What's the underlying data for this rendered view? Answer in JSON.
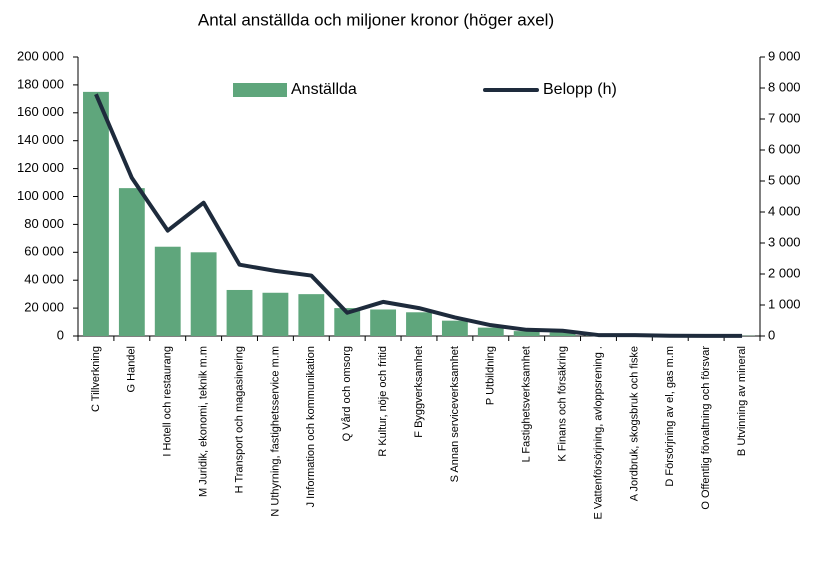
{
  "chart_data": {
    "type": "bar",
    "title": "Antal anställda och miljoner kronor (höger axel)",
    "categories": [
      "C Tillverkning",
      "G Handel",
      "I Hotell och restaurang",
      "M Juridik, ekonomi, teknik m.m",
      "H Transport och magasinering",
      "N Uthyrning,  fastighetsservice m.m",
      "J Information och kommunikation",
      "Q Vård och omsorg",
      "R Kultur, nöje och fritid",
      "F Byggverksamhet",
      "S Annan serviceverksamhet",
      "P Utbildning",
      "L Fastighetsverksamhet",
      "K Finans och försäkring",
      "E Vattenförsörjning, avloppsrening .",
      "A Jordbruk, skogsbruk och fiske",
      "D Försörjning av el, gas m.m",
      "O Offentlig förvaltning och försvar",
      "B Utvinning av mineral"
    ],
    "series": [
      {
        "name": "Anställda",
        "type": "bar",
        "color": "#5fa67c",
        "values": [
          175000,
          106000,
          64000,
          60000,
          33000,
          31000,
          30000,
          20000,
          19000,
          17000,
          11000,
          6000,
          3500,
          2500,
          1500,
          1200,
          600,
          300,
          200
        ]
      },
      {
        "name": "Belopp (h)",
        "type": "line",
        "axis": "y2",
        "color": "#1e2b3c",
        "values": [
          7800,
          5100,
          3400,
          4300,
          2300,
          2100,
          1950,
          750,
          1100,
          900,
          600,
          350,
          200,
          170,
          30,
          30,
          10,
          5,
          5
        ]
      }
    ],
    "ylim": [
      0,
      200000
    ],
    "yticks": [
      0,
      {
        "value": 20000,
        "label": "20 000"
      },
      {
        "value": 40000,
        "label": "40 000"
      },
      {
        "value": 60000,
        "label": "60 000"
      },
      {
        "value": 80000,
        "label": "80 000"
      },
      {
        "value": 100000,
        "label": "100 000"
      },
      {
        "value": 120000,
        "label": "120 000"
      },
      {
        "value": 140000,
        "label": "140 000"
      },
      {
        "value": 160000,
        "label": "160 000"
      },
      {
        "value": 180000,
        "label": "180 000"
      },
      {
        "value": 200000,
        "label": "200 000"
      }
    ],
    "y2lim": [
      0,
      9000
    ],
    "y2ticks": [
      0,
      {
        "value": 1000,
        "label": "1 000"
      },
      {
        "value": 2000,
        "label": "2 000"
      },
      {
        "value": 3000,
        "label": "3 000"
      },
      {
        "value": 4000,
        "label": "4 000"
      },
      {
        "value": 5000,
        "label": "5 000"
      },
      {
        "value": 6000,
        "label": "6 000"
      },
      {
        "value": 7000,
        "label": "7 000"
      },
      {
        "value": 8000,
        "label": "8 000"
      },
      {
        "value": 9000,
        "label": "9 000"
      }
    ],
    "grid": false,
    "legend": "top"
  }
}
